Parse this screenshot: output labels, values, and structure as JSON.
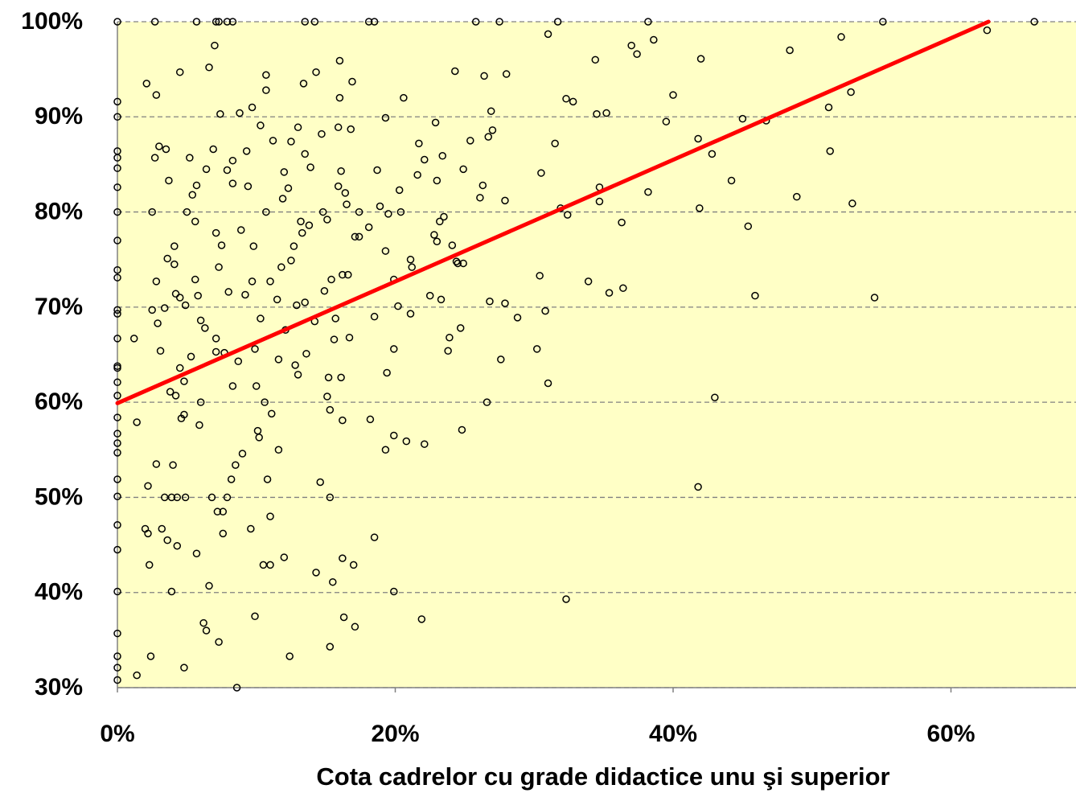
{
  "chart_data": {
    "type": "scatter",
    "xlabel": "Cota cadrelor cu grade didactice unu şi superior",
    "xlim": [
      0,
      69
    ],
    "ylim": [
      30,
      100
    ],
    "xticks": [
      {
        "value": 0,
        "label": "0%"
      },
      {
        "value": 20,
        "label": "20%"
      },
      {
        "value": 40,
        "label": "40%"
      },
      {
        "value": 60,
        "label": "60%"
      }
    ],
    "yticks": [
      {
        "value": 30,
        "label": "30%"
      },
      {
        "value": 40,
        "label": "40%"
      },
      {
        "value": 50,
        "label": "50%"
      },
      {
        "value": 60,
        "label": "60%"
      },
      {
        "value": 70,
        "label": "70%"
      },
      {
        "value": 80,
        "label": "80%"
      },
      {
        "value": 90,
        "label": "90%"
      },
      {
        "value": 100,
        "label": "100%"
      }
    ],
    "grid": true,
    "background": "#ffffc6",
    "color": "#000000",
    "x": [
      0,
      2.7,
      5.7,
      7.1,
      7.3,
      7.9,
      8.3,
      13.5,
      14.2,
      18.1,
      18.5,
      25.8,
      27.5,
      31.7,
      38.2,
      55.1,
      66.0,
      0,
      0,
      0,
      0,
      0,
      0,
      0,
      0,
      0,
      0,
      0,
      0,
      0,
      0,
      0,
      0,
      0,
      0,
      0,
      0,
      0,
      0,
      0,
      0,
      0,
      0,
      0,
      0,
      0,
      0,
      1.2,
      1.4,
      1.4,
      2.0,
      2.1,
      2.2,
      2.2,
      2.3,
      2.4,
      2.5,
      2.5,
      2.7,
      2.8,
      2.8,
      2.8,
      2.9,
      3.0,
      3.1,
      3.2,
      3.4,
      3.4,
      3.5,
      3.6,
      3.6,
      3.7,
      3.8,
      3.9,
      3.9,
      4.0,
      4.1,
      4.1,
      4.2,
      4.2,
      4.3,
      4.3,
      4.5,
      4.5,
      4.5,
      4.6,
      4.8,
      4.8,
      4.8,
      4.9,
      4.9,
      5.0,
      5.2,
      5.3,
      5.4,
      5.6,
      5.6,
      5.7,
      5.7,
      5.8,
      5.9,
      6.0,
      6.0,
      6.2,
      6.3,
      6.4,
      6.4,
      6.6,
      6.6,
      6.8,
      6.9,
      7.0,
      7.1,
      7.1,
      7.1,
      7.2,
      7.3,
      7.3,
      7.4,
      7.5,
      7.6,
      7.6,
      7.7,
      7.9,
      7.9,
      8.0,
      8.2,
      8.3,
      8.3,
      8.3,
      8.5,
      8.6,
      8.7,
      8.8,
      8.9,
      9.0,
      9.2,
      9.3,
      9.4,
      9.6,
      9.7,
      9.7,
      9.8,
      9.9,
      9.9,
      10.0,
      10.1,
      10.2,
      10.3,
      10.3,
      10.5,
      10.6,
      10.7,
      10.7,
      10.7,
      10.8,
      11.0,
      11.0,
      11.1,
      11.0,
      11.2,
      11.5,
      11.6,
      11.6,
      11.8,
      11.9,
      12.0,
      12.0,
      12.1,
      12.3,
      12.4,
      12.5,
      12.5,
      12.7,
      12.8,
      12.9,
      13.0,
      13.0,
      13.2,
      13.3,
      13.4,
      13.5,
      13.5,
      13.6,
      13.8,
      13.9,
      14.2,
      14.3,
      14.3,
      14.6,
      14.7,
      14.8,
      14.9,
      15.1,
      15.1,
      15.2,
      15.3,
      15.3,
      15.3,
      15.4,
      15.5,
      15.6,
      15.7,
      15.9,
      15.9,
      16.0,
      16.0,
      16.1,
      16.1,
      16.2,
      16.2,
      16.2,
      16.3,
      16.4,
      16.5,
      16.6,
      16.7,
      16.8,
      16.9,
      17.0,
      17.1,
      17.1,
      17.4,
      17.4,
      18.1,
      18.2,
      18.5,
      18.5,
      18.7,
      18.9,
      19.3,
      19.3,
      19.3,
      19.4,
      19.5,
      19.9,
      19.9,
      19.9,
      19.9,
      20.2,
      20.3,
      20.4,
      20.6,
      20.8,
      21.1,
      21.1,
      21.2,
      21.6,
      21.7,
      21.9,
      22.1,
      22.1,
      22.5,
      22.8,
      22.9,
      23.0,
      23.0,
      23.2,
      23.3,
      23.4,
      23.5,
      23.8,
      23.9,
      24.1,
      24.3,
      24.4,
      24.5,
      24.7,
      24.8,
      24.9,
      24.9,
      25.4,
      26.1,
      26.3,
      26.4,
      26.6,
      26.7,
      26.8,
      26.9,
      27.0,
      27.6,
      27.9,
      27.9,
      28.0,
      28.8,
      30.2,
      30.4,
      30.5,
      30.8,
      31.0,
      31.0,
      31.5,
      31.9,
      32.3,
      32.3,
      32.4,
      32.8,
      33.9,
      34.4,
      34.5,
      34.7,
      34.7,
      35.2,
      35.4,
      36.3,
      36.4,
      37.0,
      37.4,
      38.2,
      38.6,
      39.5,
      40.0,
      41.8,
      41.8,
      41.9,
      42.0,
      42.8,
      43.0,
      44.2,
      45.0,
      45.4,
      45.9,
      46.7,
      48.4,
      48.9,
      51.2,
      51.3,
      52.1,
      52.8,
      52.9,
      54.5,
      62.6
    ],
    "values": [
      100,
      100,
      100,
      100,
      100,
      100,
      100,
      100,
      100,
      100,
      100,
      100,
      100,
      100,
      100,
      100,
      100,
      91.6,
      90,
      86.4,
      85.7,
      84.6,
      82.6,
      80,
      77,
      73.9,
      73.1,
      69.7,
      69.3,
      66.7,
      63.8,
      63.6,
      62.1,
      60.7,
      58.4,
      56.7,
      55.7,
      54.7,
      51.9,
      50.1,
      47.1,
      44.5,
      40.1,
      35.7,
      33.3,
      32.1,
      30.8,
      66.7,
      57.9,
      31.3,
      46.7,
      93.5,
      51.2,
      46.2,
      42.9,
      33.3,
      80,
      69.7,
      85.7,
      92.3,
      72.7,
      53.5,
      68.3,
      86.9,
      65.4,
      46.7,
      50,
      69.9,
      86.6,
      75.1,
      45.5,
      83.3,
      61.1,
      50,
      40.1,
      53.4,
      74.5,
      76.4,
      71.4,
      60.7,
      44.9,
      50,
      94.7,
      71.0,
      63.6,
      58.3,
      62.2,
      58.7,
      32.1,
      70.2,
      50,
      80,
      85.7,
      64.8,
      81.8,
      79.0,
      72.9,
      44.1,
      82.8,
      71.2,
      57.6,
      60,
      68.6,
      36.8,
      67.8,
      36.0,
      84.5,
      95.2,
      40.7,
      50,
      86.6,
      97.5,
      77.8,
      65.3,
      66.7,
      48.5,
      34.8,
      74.2,
      90.3,
      76.5,
      48.5,
      46.2,
      65.2,
      50,
      84.4,
      71.6,
      51.9,
      85.4,
      83.0,
      61.7,
      53.4,
      30,
      64.3,
      90.4,
      78.1,
      54.6,
      71.3,
      86.4,
      82.7,
      46.7,
      91.0,
      72.7,
      76.4,
      65.6,
      37.5,
      61.7,
      57.0,
      56.3,
      89.1,
      68.8,
      42.9,
      60,
      80,
      94.4,
      92.8,
      51.9,
      42.9,
      72.7,
      58.8,
      48.0,
      87.5,
      70.8,
      55.0,
      64.5,
      74.2,
      81.4,
      43.7,
      84.2,
      67.6,
      82.5,
      33.3,
      87.4,
      74.9,
      76.4,
      63.9,
      70.2,
      88.9,
      62.9,
      79.0,
      77.8,
      93.5,
      86.1,
      70.5,
      65.1,
      78.6,
      84.7,
      68.5,
      94.7,
      42.1,
      51.6,
      88.2,
      80,
      71.7,
      79.2,
      60.6,
      62.6,
      34.3,
      50,
      59.2,
      72.9,
      41.1,
      66.6,
      68.8,
      82.7,
      88.9,
      95.9,
      92.0,
      84.3,
      62.6,
      43.6,
      73.4,
      58.1,
      37.4,
      82.0,
      80.8,
      73.4,
      66.8,
      88.7,
      93.7,
      42.9,
      36.4,
      77.4,
      80,
      77.4,
      78.4,
      58.2,
      45.8,
      69.0,
      84.4,
      80.6,
      89.9,
      75.9,
      55.0,
      63.1,
      79.8,
      65.6,
      56.5,
      40.1,
      72.9,
      70.1,
      82.3,
      80,
      92.0,
      55.9,
      75.0,
      69.3,
      74.2,
      83.9,
      87.2,
      37.2,
      85.5,
      55.6,
      71.2,
      77.6,
      89.4,
      76.9,
      83.3,
      79.0,
      70.8,
      85.9,
      79.5,
      65.4,
      66.8,
      76.5,
      94.8,
      74.8,
      74.6,
      67.8,
      57.1,
      84.5,
      74.6,
      87.5,
      81.5,
      82.8,
      94.3,
      60,
      87.9,
      70.6,
      90.6,
      88.6,
      64.5,
      70.4,
      81.2,
      94.5,
      68.9,
      65.6,
      73.3,
      84.1,
      69.6,
      62.0,
      98.7,
      87.2,
      80.4,
      91.9,
      39.3,
      79.7,
      91.6,
      72.7,
      96.0,
      90.3,
      82.6,
      81.1,
      90.4,
      71.5,
      78.9,
      72.0,
      97.5,
      96.6,
      82.1,
      98.1,
      89.5,
      92.3,
      87.7,
      51.1,
      80.4,
      96.1,
      86.1,
      60.5,
      83.3,
      89.8,
      78.5,
      71.2,
      89.6,
      97.0,
      81.6,
      91.0,
      86.4,
      98.4,
      92.6,
      80.9,
      71.0,
      99.1
    ],
    "trendline": {
      "x": [
        0,
        62.7
      ],
      "y": [
        59.9,
        100
      ],
      "color": "#ff0000"
    }
  }
}
